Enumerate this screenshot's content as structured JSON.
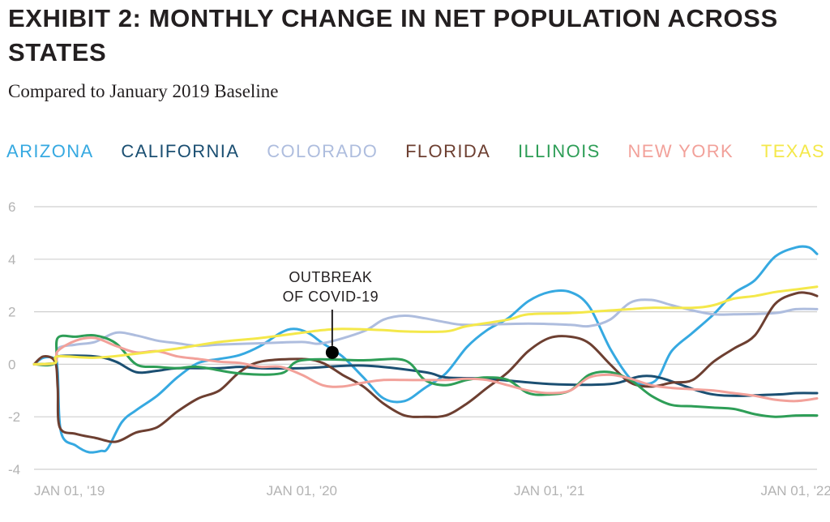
{
  "chart_data": {
    "type": "line",
    "title": "EXHIBIT 2: MONTHLY CHANGE IN NET POPULATION ACROSS STATES",
    "subtitle": "Compared to January 2019 Baseline",
    "xlabel": "",
    "ylabel": "",
    "ylim": [
      -4,
      6
    ],
    "yticks": [
      6,
      4,
      2,
      0,
      -2,
      -4
    ],
    "ytick_labels": [
      "6",
      "4",
      "2",
      "0",
      "-2",
      "-4"
    ],
    "xlim": [
      "2018-12-01",
      "2022-02-01"
    ],
    "xticks": [
      {
        "date": "2019-01-01",
        "label": "JAN 01, '19"
      },
      {
        "date": "2020-01-01",
        "label": "JAN 01, '20"
      },
      {
        "date": "2021-01-01",
        "label": "JAN 01, '21"
      },
      {
        "date": "2022-01-01",
        "label": "JAN 01, '22"
      }
    ],
    "grid": true,
    "legend_position": "top",
    "annotations": [
      {
        "lines": [
          "OUTBREAK",
          "OF COVID-19"
        ],
        "date": "2020-02-15",
        "value": 0.45
      }
    ],
    "series": [
      {
        "name": "ARIZONA",
        "color": "#36a9e1",
        "points": [
          [
            "2018-12-01",
            0
          ],
          [
            "2018-12-15",
            0.25
          ],
          [
            "2019-01-01",
            0.2
          ],
          [
            "2019-01-05",
            -0.3
          ],
          [
            "2019-01-10",
            -2.6
          ],
          [
            "2019-02-01",
            -3.1
          ],
          [
            "2019-02-20",
            -3.35
          ],
          [
            "2019-03-10",
            -3.3
          ],
          [
            "2019-03-20",
            -3.2
          ],
          [
            "2019-04-10",
            -2.2
          ],
          [
            "2019-05-01",
            -1.75
          ],
          [
            "2019-06-01",
            -1.2
          ],
          [
            "2019-07-01",
            -0.5
          ],
          [
            "2019-08-01",
            0.05
          ],
          [
            "2019-09-01",
            0.2
          ],
          [
            "2019-10-01",
            0.35
          ],
          [
            "2019-11-01",
            0.7
          ],
          [
            "2019-12-01",
            1.2
          ],
          [
            "2019-12-20",
            1.35
          ],
          [
            "2020-01-10",
            1.2
          ],
          [
            "2020-02-01",
            0.8
          ],
          [
            "2020-03-01",
            0.3
          ],
          [
            "2020-04-01",
            -0.5
          ],
          [
            "2020-05-01",
            -1.3
          ],
          [
            "2020-06-01",
            -1.4
          ],
          [
            "2020-07-01",
            -0.9
          ],
          [
            "2020-08-01",
            -0.35
          ],
          [
            "2020-09-01",
            0.65
          ],
          [
            "2020-10-01",
            1.3
          ],
          [
            "2020-11-01",
            1.75
          ],
          [
            "2020-12-01",
            2.4
          ],
          [
            "2021-01-01",
            2.75
          ],
          [
            "2021-02-01",
            2.75
          ],
          [
            "2021-03-01",
            2.2
          ],
          [
            "2021-04-01",
            0.6
          ],
          [
            "2021-05-01",
            -0.55
          ],
          [
            "2021-05-20",
            -0.75
          ],
          [
            "2021-06-10",
            -0.55
          ],
          [
            "2021-07-01",
            0.5
          ],
          [
            "2021-08-01",
            1.2
          ],
          [
            "2021-09-01",
            1.9
          ],
          [
            "2021-10-01",
            2.7
          ],
          [
            "2021-11-01",
            3.2
          ],
          [
            "2021-12-01",
            4.1
          ],
          [
            "2022-01-01",
            4.45
          ],
          [
            "2022-01-20",
            4.45
          ],
          [
            "2022-02-01",
            4.2
          ]
        ]
      },
      {
        "name": "CALIFORNIA",
        "color": "#1b4f72",
        "points": [
          [
            "2018-12-01",
            0
          ],
          [
            "2019-01-01",
            0.05
          ],
          [
            "2019-01-05",
            0.3
          ],
          [
            "2019-03-01",
            0.3
          ],
          [
            "2019-04-01",
            0.1
          ],
          [
            "2019-05-01",
            -0.3
          ],
          [
            "2019-06-01",
            -0.25
          ],
          [
            "2019-07-01",
            -0.15
          ],
          [
            "2019-09-01",
            -0.15
          ],
          [
            "2019-10-01",
            -0.1
          ],
          [
            "2019-11-01",
            -0.15
          ],
          [
            "2020-01-01",
            -0.15
          ],
          [
            "2020-04-01",
            -0.05
          ],
          [
            "2020-07-01",
            -0.3
          ],
          [
            "2020-08-01",
            -0.5
          ],
          [
            "2020-10-01",
            -0.55
          ],
          [
            "2021-01-01",
            -0.75
          ],
          [
            "2021-04-01",
            -0.75
          ],
          [
            "2021-06-01",
            -0.45
          ],
          [
            "2021-09-01",
            -1.15
          ],
          [
            "2021-12-01",
            -1.15
          ],
          [
            "2022-01-01",
            -1.1
          ],
          [
            "2022-02-01",
            -1.1
          ]
        ]
      },
      {
        "name": "COLORADO",
        "color": "#aebdde",
        "points": [
          [
            "2018-12-01",
            0
          ],
          [
            "2019-01-01",
            0.05
          ],
          [
            "2019-01-05",
            0.6
          ],
          [
            "2019-02-01",
            0.75
          ],
          [
            "2019-03-01",
            0.85
          ],
          [
            "2019-04-01",
            1.2
          ],
          [
            "2019-05-01",
            1.1
          ],
          [
            "2019-06-01",
            0.9
          ],
          [
            "2019-07-01",
            0.8
          ],
          [
            "2019-08-01",
            0.7
          ],
          [
            "2019-09-01",
            0.75
          ],
          [
            "2019-11-01",
            0.8
          ],
          [
            "2020-01-01",
            0.85
          ],
          [
            "2020-02-01",
            0.8
          ],
          [
            "2020-04-01",
            1.25
          ],
          [
            "2020-05-01",
            1.7
          ],
          [
            "2020-06-01",
            1.85
          ],
          [
            "2020-07-01",
            1.75
          ],
          [
            "2020-08-01",
            1.6
          ],
          [
            "2020-09-01",
            1.5
          ],
          [
            "2020-12-01",
            1.55
          ],
          [
            "2021-02-01",
            1.5
          ],
          [
            "2021-03-01",
            1.45
          ],
          [
            "2021-04-01",
            1.7
          ],
          [
            "2021-05-01",
            2.35
          ],
          [
            "2021-06-01",
            2.45
          ],
          [
            "2021-07-01",
            2.25
          ],
          [
            "2021-08-01",
            2.05
          ],
          [
            "2021-09-01",
            1.9
          ],
          [
            "2021-10-01",
            1.9
          ],
          [
            "2021-12-01",
            1.95
          ],
          [
            "2022-01-01",
            2.1
          ],
          [
            "2022-02-01",
            2.1
          ]
        ]
      },
      {
        "name": "FLORIDA",
        "color": "#6d3f31",
        "points": [
          [
            "2018-12-01",
            0
          ],
          [
            "2018-12-15",
            0.3
          ],
          [
            "2019-01-01",
            0.1
          ],
          [
            "2019-01-05",
            -0.9
          ],
          [
            "2019-01-08",
            -2.4
          ],
          [
            "2019-02-01",
            -2.65
          ],
          [
            "2019-03-01",
            -2.8
          ],
          [
            "2019-04-01",
            -2.95
          ],
          [
            "2019-05-01",
            -2.6
          ],
          [
            "2019-06-01",
            -2.4
          ],
          [
            "2019-07-01",
            -1.8
          ],
          [
            "2019-08-01",
            -1.3
          ],
          [
            "2019-09-01",
            -1.0
          ],
          [
            "2019-10-01",
            -0.3
          ],
          [
            "2019-11-01",
            0.1
          ],
          [
            "2020-01-01",
            0.2
          ],
          [
            "2020-02-01",
            0.05
          ],
          [
            "2020-03-01",
            -0.4
          ],
          [
            "2020-04-01",
            -0.85
          ],
          [
            "2020-05-01",
            -1.5
          ],
          [
            "2020-06-01",
            -1.95
          ],
          [
            "2020-07-01",
            -2.0
          ],
          [
            "2020-08-01",
            -1.95
          ],
          [
            "2020-09-01",
            -1.5
          ],
          [
            "2020-10-01",
            -0.9
          ],
          [
            "2020-11-01",
            -0.3
          ],
          [
            "2020-12-01",
            0.5
          ],
          [
            "2021-01-01",
            1.0
          ],
          [
            "2021-02-01",
            1.05
          ],
          [
            "2021-03-01",
            0.8
          ],
          [
            "2021-04-01",
            0.0
          ],
          [
            "2021-05-01",
            -0.7
          ],
          [
            "2021-06-01",
            -0.85
          ],
          [
            "2021-07-01",
            -0.7
          ],
          [
            "2021-08-01",
            -0.6
          ],
          [
            "2021-09-01",
            0.1
          ],
          [
            "2021-10-01",
            0.6
          ],
          [
            "2021-11-01",
            1.1
          ],
          [
            "2021-12-01",
            2.3
          ],
          [
            "2022-01-01",
            2.7
          ],
          [
            "2022-01-20",
            2.7
          ],
          [
            "2022-02-01",
            2.6
          ]
        ]
      },
      {
        "name": "ILLINOIS",
        "color": "#2e9e57",
        "points": [
          [
            "2018-12-01",
            0
          ],
          [
            "2019-01-01",
            0.05
          ],
          [
            "2019-01-05",
            1.0
          ],
          [
            "2019-02-01",
            1.05
          ],
          [
            "2019-03-01",
            1.1
          ],
          [
            "2019-04-01",
            0.8
          ],
          [
            "2019-05-01",
            0.0
          ],
          [
            "2019-06-01",
            -0.1
          ],
          [
            "2019-07-01",
            -0.15
          ],
          [
            "2019-08-01",
            -0.1
          ],
          [
            "2019-10-01",
            -0.35
          ],
          [
            "2019-12-01",
            -0.35
          ],
          [
            "2020-01-01",
            0.15
          ],
          [
            "2020-04-01",
            0.15
          ],
          [
            "2020-06-01",
            0.15
          ],
          [
            "2020-07-01",
            -0.6
          ],
          [
            "2020-08-01",
            -0.8
          ],
          [
            "2020-09-01",
            -0.6
          ],
          [
            "2020-10-01",
            -0.5
          ],
          [
            "2020-11-01",
            -0.6
          ],
          [
            "2020-12-01",
            -1.1
          ],
          [
            "2021-01-01",
            -1.15
          ],
          [
            "2021-02-01",
            -1.0
          ],
          [
            "2021-03-01",
            -0.4
          ],
          [
            "2021-04-01",
            -0.3
          ],
          [
            "2021-05-01",
            -0.6
          ],
          [
            "2021-06-01",
            -1.2
          ],
          [
            "2021-07-01",
            -1.55
          ],
          [
            "2021-08-01",
            -1.6
          ],
          [
            "2021-09-01",
            -1.65
          ],
          [
            "2021-10-01",
            -1.7
          ],
          [
            "2021-11-01",
            -1.9
          ],
          [
            "2021-12-01",
            -2.0
          ],
          [
            "2022-01-01",
            -1.95
          ],
          [
            "2022-02-01",
            -1.95
          ]
        ]
      },
      {
        "name": "NEW YORK",
        "color": "#f2a19a",
        "points": [
          [
            "2018-12-01",
            0
          ],
          [
            "2019-01-01",
            0.05
          ],
          [
            "2019-01-05",
            0.5
          ],
          [
            "2019-02-01",
            0.9
          ],
          [
            "2019-03-01",
            1.0
          ],
          [
            "2019-04-01",
            0.7
          ],
          [
            "2019-05-01",
            0.45
          ],
          [
            "2019-06-01",
            0.5
          ],
          [
            "2019-07-01",
            0.3
          ],
          [
            "2019-08-01",
            0.2
          ],
          [
            "2019-09-01",
            0.1
          ],
          [
            "2019-10-01",
            0.05
          ],
          [
            "2019-11-01",
            -0.1
          ],
          [
            "2019-12-01",
            -0.1
          ],
          [
            "2020-01-01",
            -0.4
          ],
          [
            "2020-02-01",
            -0.8
          ],
          [
            "2020-03-01",
            -0.85
          ],
          [
            "2020-04-01",
            -0.7
          ],
          [
            "2020-05-01",
            -0.6
          ],
          [
            "2020-06-01",
            -0.6
          ],
          [
            "2020-08-01",
            -0.6
          ],
          [
            "2020-09-01",
            -0.55
          ],
          [
            "2020-10-01",
            -0.6
          ],
          [
            "2020-11-01",
            -0.8
          ],
          [
            "2020-12-01",
            -1.0
          ],
          [
            "2021-01-01",
            -1.1
          ],
          [
            "2021-02-01",
            -1.0
          ],
          [
            "2021-03-01",
            -0.5
          ],
          [
            "2021-04-01",
            -0.4
          ],
          [
            "2021-05-01",
            -0.55
          ],
          [
            "2021-06-01",
            -0.8
          ],
          [
            "2021-07-01",
            -0.9
          ],
          [
            "2021-08-01",
            -0.95
          ],
          [
            "2021-09-01",
            -1.0
          ],
          [
            "2021-10-01",
            -1.1
          ],
          [
            "2021-11-01",
            -1.2
          ],
          [
            "2021-12-01",
            -1.35
          ],
          [
            "2022-01-01",
            -1.4
          ],
          [
            "2022-02-01",
            -1.3
          ]
        ]
      },
      {
        "name": "TEXAS",
        "color": "#f4e84a",
        "points": [
          [
            "2018-12-01",
            0
          ],
          [
            "2019-01-01",
            0.05
          ],
          [
            "2019-01-05",
            0.3
          ],
          [
            "2019-03-01",
            0.25
          ],
          [
            "2019-05-01",
            0.4
          ],
          [
            "2019-07-01",
            0.6
          ],
          [
            "2019-09-01",
            0.85
          ],
          [
            "2019-11-01",
            1.0
          ],
          [
            "2020-01-01",
            1.2
          ],
          [
            "2020-02-01",
            1.3
          ],
          [
            "2020-03-01",
            1.35
          ],
          [
            "2020-05-01",
            1.3
          ],
          [
            "2020-06-01",
            1.25
          ],
          [
            "2020-08-01",
            1.25
          ],
          [
            "2020-09-01",
            1.45
          ],
          [
            "2020-11-01",
            1.7
          ],
          [
            "2020-12-01",
            1.9
          ],
          [
            "2021-02-01",
            1.95
          ],
          [
            "2021-04-01",
            2.05
          ],
          [
            "2021-05-01",
            2.1
          ],
          [
            "2021-06-01",
            2.15
          ],
          [
            "2021-08-01",
            2.15
          ],
          [
            "2021-09-01",
            2.25
          ],
          [
            "2021-10-01",
            2.5
          ],
          [
            "2021-11-01",
            2.6
          ],
          [
            "2021-12-01",
            2.75
          ],
          [
            "2022-01-01",
            2.85
          ],
          [
            "2022-02-01",
            2.95
          ]
        ]
      }
    ]
  }
}
